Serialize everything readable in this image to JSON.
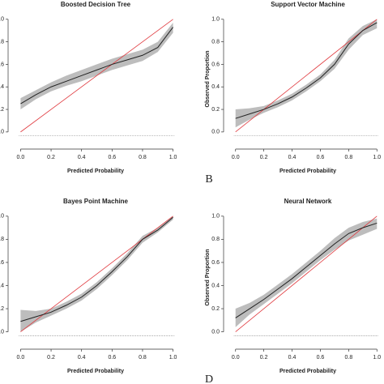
{
  "chart_data": [
    {
      "type": "line",
      "title": "Boosted Decision Tree",
      "xlabel": "Predicted Probability",
      "x": [
        0,
        0.1,
        0.2,
        0.3,
        0.4,
        0.5,
        0.6,
        0.7,
        0.8,
        0.9,
        1.0
      ],
      "values": [
        0.25,
        0.33,
        0.4,
        0.45,
        0.5,
        0.55,
        0.6,
        0.64,
        0.68,
        0.75,
        0.93
      ],
      "lower": [
        0.2,
        0.29,
        0.36,
        0.41,
        0.45,
        0.5,
        0.55,
        0.59,
        0.63,
        0.71,
        0.88
      ],
      "upper": [
        0.3,
        0.37,
        0.44,
        0.5,
        0.55,
        0.6,
        0.65,
        0.69,
        0.73,
        0.8,
        0.97
      ],
      "color": "#222222",
      "band_color": "#bdbdbd",
      "ref_color": "#e0393e",
      "xlim": [
        -0.05,
        1.05
      ],
      "ylim": [
        -0.08,
        1.02
      ],
      "xticks": [
        {
          "value": 0,
          "label": "0.0"
        },
        {
          "value": 0.2,
          "label": "0.2"
        },
        {
          "value": 0.4,
          "label": "0.4"
        },
        {
          "value": 0.6,
          "label": "0.6"
        },
        {
          "value": 0.8,
          "label": "0.8"
        },
        {
          "value": 1,
          "label": "1.0"
        }
      ],
      "yticks": [
        {
          "value": 0,
          "label": "0.0"
        },
        {
          "value": 0.2,
          "label": "0.2"
        },
        {
          "value": 0.4,
          "label": "0.4"
        },
        {
          "value": 0.6,
          "label": "0.6"
        },
        {
          "value": 0.8,
          "label": "0.8"
        },
        {
          "value": 1,
          "label": "1.0"
        }
      ]
    },
    {
      "type": "line",
      "title": "Support Vector Machine",
      "xlabel": "Predicted Probability",
      "ylabel": "Observed Proportion",
      "panel_label": "B",
      "x": [
        0,
        0.1,
        0.2,
        0.3,
        0.4,
        0.5,
        0.6,
        0.7,
        0.8,
        0.9,
        1.0
      ],
      "values": [
        0.12,
        0.16,
        0.2,
        0.25,
        0.31,
        0.39,
        0.48,
        0.6,
        0.78,
        0.9,
        0.97
      ],
      "lower": [
        0.04,
        0.11,
        0.17,
        0.22,
        0.28,
        0.36,
        0.45,
        0.56,
        0.73,
        0.86,
        0.92
      ],
      "upper": [
        0.2,
        0.21,
        0.23,
        0.28,
        0.34,
        0.42,
        0.51,
        0.64,
        0.83,
        0.94,
        1.0
      ],
      "color": "#222222",
      "band_color": "#bdbdbd",
      "ref_color": "#e0393e",
      "xlim": [
        -0.05,
        1.05
      ],
      "ylim": [
        -0.08,
        1.02
      ],
      "xticks": [
        {
          "value": 0,
          "label": "0.0"
        },
        {
          "value": 0.2,
          "label": "0.2"
        },
        {
          "value": 0.4,
          "label": "0.4"
        },
        {
          "value": 0.6,
          "label": "0.6"
        },
        {
          "value": 0.8,
          "label": "0.8"
        },
        {
          "value": 1,
          "label": "1.0"
        }
      ],
      "yticks": [
        {
          "value": 0,
          "label": "0.0"
        },
        {
          "value": 0.2,
          "label": "0.2"
        },
        {
          "value": 0.4,
          "label": "0.4"
        },
        {
          "value": 0.6,
          "label": "0.6"
        },
        {
          "value": 0.8,
          "label": "0.8"
        },
        {
          "value": 1,
          "label": "1.0"
        }
      ]
    },
    {
      "type": "line",
      "title": "Bayes Point Machine",
      "xlabel": "Predicted Probability",
      "x": [
        0,
        0.1,
        0.2,
        0.3,
        0.4,
        0.5,
        0.6,
        0.7,
        0.8,
        0.9,
        1.0
      ],
      "values": [
        0.09,
        0.13,
        0.17,
        0.23,
        0.3,
        0.4,
        0.52,
        0.65,
        0.8,
        0.88,
        0.99
      ],
      "lower": [
        0.0,
        0.08,
        0.14,
        0.2,
        0.27,
        0.37,
        0.49,
        0.62,
        0.77,
        0.86,
        0.97
      ],
      "upper": [
        0.19,
        0.18,
        0.2,
        0.26,
        0.33,
        0.43,
        0.55,
        0.68,
        0.83,
        0.9,
        1.0
      ],
      "color": "#222222",
      "band_color": "#bdbdbd",
      "ref_color": "#e0393e",
      "xlim": [
        -0.05,
        1.05
      ],
      "ylim": [
        -0.08,
        1.02
      ],
      "xticks": [
        {
          "value": 0,
          "label": "0.0"
        },
        {
          "value": 0.2,
          "label": "0.2"
        },
        {
          "value": 0.4,
          "label": "0.4"
        },
        {
          "value": 0.6,
          "label": "0.6"
        },
        {
          "value": 0.8,
          "label": "0.8"
        },
        {
          "value": 1,
          "label": "1.0"
        }
      ],
      "yticks": [
        {
          "value": 0,
          "label": "0.0"
        },
        {
          "value": 0.2,
          "label": "0.2"
        },
        {
          "value": 0.4,
          "label": "0.4"
        },
        {
          "value": 0.6,
          "label": "0.6"
        },
        {
          "value": 0.8,
          "label": "0.8"
        },
        {
          "value": 1,
          "label": "1.0"
        }
      ]
    },
    {
      "type": "line",
      "title": "Neural Network",
      "xlabel": "Predicted Probability",
      "ylabel": "Observed Proportion",
      "panel_label": "D",
      "x": [
        0,
        0.1,
        0.2,
        0.3,
        0.4,
        0.5,
        0.6,
        0.7,
        0.8,
        0.9,
        1.0
      ],
      "values": [
        0.12,
        0.2,
        0.28,
        0.37,
        0.46,
        0.56,
        0.66,
        0.76,
        0.85,
        0.9,
        0.94
      ],
      "lower": [
        0.04,
        0.15,
        0.24,
        0.33,
        0.42,
        0.52,
        0.62,
        0.71,
        0.79,
        0.84,
        0.89
      ],
      "upper": [
        0.2,
        0.25,
        0.32,
        0.41,
        0.5,
        0.6,
        0.7,
        0.81,
        0.9,
        0.95,
        0.98
      ],
      "color": "#222222",
      "band_color": "#bdbdbd",
      "ref_color": "#e0393e",
      "xlim": [
        -0.05,
        1.05
      ],
      "ylim": [
        -0.08,
        1.02
      ],
      "xticks": [
        {
          "value": 0,
          "label": "0.0"
        },
        {
          "value": 0.2,
          "label": "0.2"
        },
        {
          "value": 0.4,
          "label": "0.4"
        },
        {
          "value": 0.6,
          "label": "0.6"
        },
        {
          "value": 0.8,
          "label": "0.8"
        },
        {
          "value": 1,
          "label": "1.0"
        }
      ],
      "yticks": [
        {
          "value": 0,
          "label": "0.0"
        },
        {
          "value": 0.2,
          "label": "0.2"
        },
        {
          "value": 0.4,
          "label": "0.4"
        },
        {
          "value": 0.6,
          "label": "0.6"
        },
        {
          "value": 0.8,
          "label": "0.8"
        },
        {
          "value": 1,
          "label": "1.0"
        }
      ]
    }
  ]
}
